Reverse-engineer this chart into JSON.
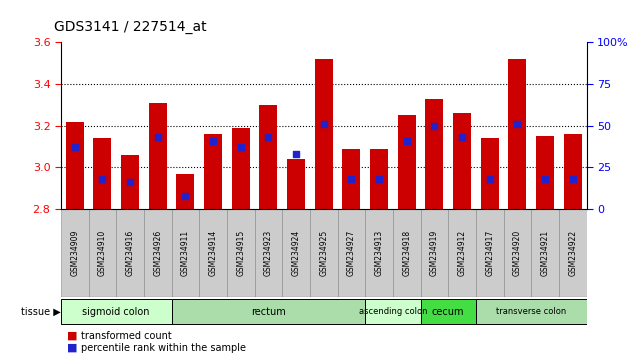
{
  "title": "GDS3141 / 227514_at",
  "samples": [
    "GSM234909",
    "GSM234910",
    "GSM234916",
    "GSM234926",
    "GSM234911",
    "GSM234914",
    "GSM234915",
    "GSM234923",
    "GSM234924",
    "GSM234925",
    "GSM234927",
    "GSM234913",
    "GSM234918",
    "GSM234919",
    "GSM234912",
    "GSM234917",
    "GSM234920",
    "GSM234921",
    "GSM234922"
  ],
  "transformed_counts": [
    3.22,
    3.14,
    3.06,
    3.31,
    2.97,
    3.16,
    3.19,
    3.3,
    3.04,
    3.52,
    3.09,
    3.09,
    3.25,
    3.33,
    3.26,
    3.14,
    3.52,
    3.15,
    3.16
  ],
  "percentile_ranks": [
    0.37,
    0.18,
    0.16,
    0.43,
    0.08,
    0.41,
    0.37,
    0.43,
    0.33,
    0.51,
    0.18,
    0.18,
    0.41,
    0.5,
    0.43,
    0.18,
    0.51,
    0.18,
    0.18
  ],
  "ymin": 2.8,
  "ymax": 3.6,
  "yticks_left": [
    2.8,
    3.0,
    3.2,
    3.4,
    3.6
  ],
  "yticks_right_vals": [
    0,
    25,
    50,
    75,
    100
  ],
  "yticks_right_labels": [
    "0",
    "25",
    "50",
    "75",
    "100%"
  ],
  "bar_color": "#CC0000",
  "marker_color": "#2222CC",
  "grid_lines": [
    3.0,
    3.2,
    3.4
  ],
  "groups": [
    {
      "label": "sigmoid colon",
      "start": 0,
      "end": 4,
      "color": "#CCFFCC"
    },
    {
      "label": "rectum",
      "start": 4,
      "end": 11,
      "color": "#AADDAA"
    },
    {
      "label": "ascending colon",
      "start": 11,
      "end": 13,
      "color": "#CCFFCC"
    },
    {
      "label": "cecum",
      "start": 13,
      "end": 15,
      "color": "#44DD44"
    },
    {
      "label": "transverse colon",
      "start": 15,
      "end": 19,
      "color": "#AADDAA"
    }
  ],
  "xtick_bg_color": "#CCCCCC",
  "legend_tc": "transformed count",
  "legend_pr": "percentile rank within the sample",
  "tissue_label": "tissue"
}
